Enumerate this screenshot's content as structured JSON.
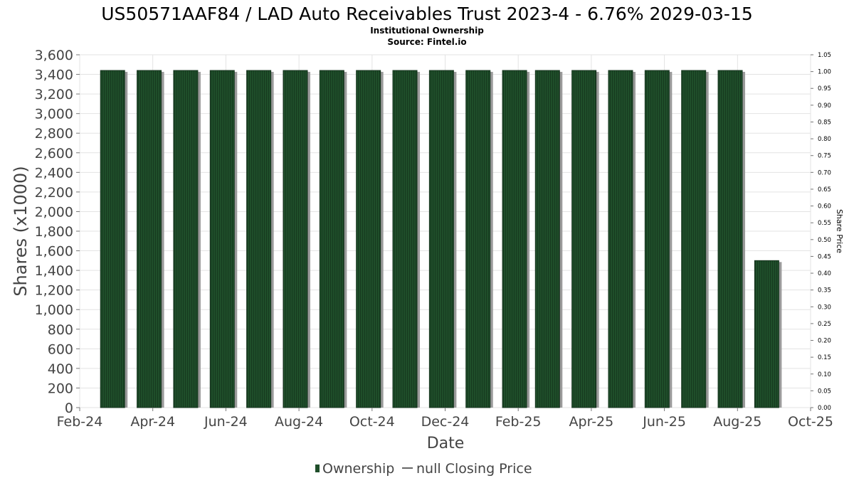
{
  "chart_data": {
    "type": "bar",
    "title": "US50571AAF84 / LAD Auto Receivables Trust 2023-4 - 6.76% 2029-03-15",
    "subtitle_lines": [
      "Institutional Ownership",
      "Source: Fintel.io"
    ],
    "xlabel": "Date",
    "ylabel": "Shares (x1000)",
    "y2label": "Share Price",
    "x_tick_labels": [
      "Feb-24",
      "Apr-24",
      "Jun-24",
      "Aug-24",
      "Oct-24",
      "Dec-24",
      "Feb-25",
      "Apr-25",
      "Jun-25",
      "Aug-25",
      "Oct-25"
    ],
    "y_tick_labels": [
      "0",
      "200",
      "400",
      "600",
      "800",
      "1,000",
      "1,200",
      "1,400",
      "1,600",
      "1,800",
      "2,000",
      "2,200",
      "2,400",
      "2,600",
      "2,800",
      "3,000",
      "3,200",
      "3,400",
      "3,600"
    ],
    "y2_tick_labels": [
      "0.00",
      "0.05",
      "0.10",
      "0.15",
      "0.20",
      "0.25",
      "0.30",
      "0.35",
      "0.40",
      "0.45",
      "0.50",
      "0.55",
      "0.60",
      "0.65",
      "0.70",
      "0.75",
      "0.80",
      "0.85",
      "0.90",
      "0.95",
      "1.00",
      "1.05"
    ],
    "ylim": [
      0,
      3600
    ],
    "y2lim": [
      0,
      1.05
    ],
    "xlim_months": [
      0,
      20
    ],
    "grid": true,
    "legend_placement": "bottom-center",
    "series": [
      {
        "name": "Ownership",
        "color": "#1f4e2a",
        "x_months": [
          0.9,
          1.9,
          2.9,
          3.9,
          4.9,
          5.9,
          6.9,
          7.9,
          8.9,
          9.9,
          10.9,
          11.9,
          12.8,
          13.8,
          14.8,
          15.8,
          16.8,
          17.8,
          18.8
        ],
        "values": [
          3440,
          3440,
          3440,
          3440,
          3440,
          3440,
          3440,
          3440,
          3440,
          3440,
          3440,
          3440,
          3440,
          3440,
          3440,
          3440,
          3440,
          3440,
          1500
        ]
      }
    ],
    "legend": [
      {
        "label": "Ownership",
        "color": "#1f4e2a",
        "symbol": "bar"
      },
      {
        "label": "null Closing Price",
        "color": "#666666",
        "symbol": "line"
      }
    ]
  }
}
